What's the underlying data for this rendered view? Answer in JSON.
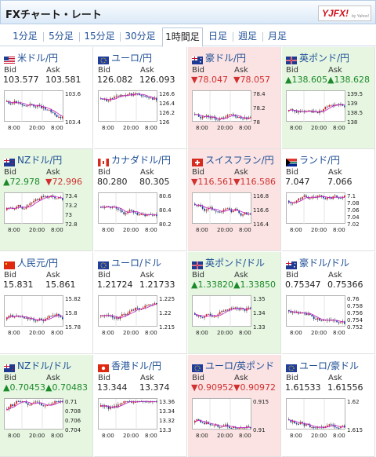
{
  "header": {
    "title": "FXチャート・レート",
    "logo_text": "YJFX!",
    "logo_sub": "by Yahoo!"
  },
  "tabs": [
    "1分足",
    "5分足",
    "15分足",
    "30分足",
    "1時間足",
    "日足",
    "週足",
    "月足"
  ],
  "active_tab": 4,
  "labels": {
    "bid": "Bid",
    "ask": "Ask"
  },
  "colors": {
    "up_bg": "#e6f6e1",
    "down_bg": "#fbe3e3",
    "up_text": "#1c8a2a",
    "down_text": "#d23030",
    "link": "#1e4f96"
  },
  "quotes": [
    {
      "name": "米ドル/円",
      "flag": "us-flag",
      "trend": "neutral",
      "bid": "103.577",
      "ask": "103.581",
      "yticks": [
        "103.6",
        "103.4"
      ],
      "xticks": [
        "8:00",
        "20:00",
        "8:00"
      ]
    },
    {
      "name": "ユーロ/円",
      "flag": "eu-flag",
      "trend": "neutral",
      "bid": "126.082",
      "ask": "126.093",
      "yticks": [
        "126.6",
        "126.4",
        "126.2",
        "126"
      ],
      "xticks": [
        "8:00",
        "20:00",
        "8:00"
      ]
    },
    {
      "name": "豪ドル/円",
      "flag": "au-flag",
      "trend": "down",
      "bid": "▼78.047",
      "ask": "▼78.057",
      "yticks": [
        "78.4",
        "78.2",
        "78"
      ],
      "xticks": [
        "8:00",
        "20:00",
        "8:00"
      ]
    },
    {
      "name": "英ポンド/円",
      "flag": "gb-flag",
      "trend": "up",
      "bid": "▲138.605",
      "ask": "▲138.628",
      "yticks": [
        "139.5",
        "139",
        "138.5",
        "138"
      ],
      "xticks": [
        "8:00",
        "20:00",
        "8:00"
      ]
    },
    {
      "name": "NZドル/円",
      "flag": "nz-flag",
      "trend": "up",
      "bid": "▲72.978",
      "ask": "▼72.996",
      "yticks": [
        "73.4",
        "73.2",
        "73",
        "72.8"
      ],
      "xticks": [
        "8:00",
        "20:00",
        "8:00"
      ]
    },
    {
      "name": "カナダドル/円",
      "flag": "ca-flag",
      "trend": "neutral",
      "bid": "80.280",
      "ask": "80.305",
      "yticks": [
        "80.6",
        "80.4",
        "80.2"
      ],
      "xticks": [
        "8:00",
        "20:00",
        "8:00"
      ]
    },
    {
      "name": "スイスフラン/円",
      "flag": "ch-flag",
      "trend": "down",
      "bid": "▼116.561",
      "ask": "▼116.586",
      "yticks": [
        "116.8",
        "116.6",
        "116.4"
      ],
      "xticks": [
        "8:00",
        "20:00",
        "8:00"
      ]
    },
    {
      "name": "ランド/円",
      "flag": "za-flag",
      "trend": "neutral",
      "bid": "7.047",
      "ask": "7.066",
      "yticks": [
        "7.1",
        "7.08",
        "7.06",
        "7.04",
        "7.02"
      ],
      "xticks": [
        "8:00",
        "20:00",
        "8:00"
      ]
    },
    {
      "name": "人民元/円",
      "flag": "cn-flag",
      "trend": "neutral",
      "bid": "15.831",
      "ask": "15.861",
      "yticks": [
        "15.82",
        "15.8",
        "15.78"
      ],
      "xticks": [
        "8:00",
        "20:00",
        "8:00"
      ]
    },
    {
      "name": "ユーロ/ドル",
      "flag": "eu-flag",
      "trend": "neutral",
      "bid": "1.21724",
      "ask": "1.21733",
      "yticks": [
        "1.225",
        "1.22",
        "1.215"
      ],
      "xticks": [
        "8:00",
        "20:00",
        "8:00"
      ]
    },
    {
      "name": "英ポンド/ドル",
      "flag": "gb-flag",
      "trend": "up",
      "bid": "▲1.33820",
      "ask": "▲1.33850",
      "yticks": [
        "1.35",
        "1.34",
        "1.33"
      ],
      "xticks": [
        "8:00",
        "20:00",
        "8:00"
      ]
    },
    {
      "name": "豪ドル/ドル",
      "flag": "au-flag",
      "trend": "neutral",
      "bid": "0.75347",
      "ask": "0.75366",
      "yticks": [
        "0.76",
        "0.758",
        "0.756",
        "0.754",
        "0.752"
      ],
      "xticks": [
        "8:00",
        "20:00",
        "8:00"
      ]
    },
    {
      "name": "NZドル/ドル",
      "flag": "nz-flag",
      "trend": "up",
      "bid": "▲0.70453",
      "ask": "▲0.70483",
      "yticks": [
        "0.71",
        "0.708",
        "0.706",
        "0.704"
      ],
      "xticks": [
        "8:00",
        "20:00",
        "8:00"
      ]
    },
    {
      "name": "香港ドル/円",
      "flag": "hk-flag",
      "trend": "neutral",
      "bid": "13.344",
      "ask": "13.374",
      "yticks": [
        "13.36",
        "13.34",
        "13.32",
        "13.3"
      ],
      "xticks": [
        "8:00",
        "20:00",
        "8:00"
      ]
    },
    {
      "name": "ユーロ/英ポンド",
      "flag": "eu-flag",
      "trend": "down",
      "bid": "▼0.90952",
      "ask": "▼0.90972",
      "yticks": [
        "0.915",
        "0.91"
      ],
      "xticks": [
        "8:00",
        "20:00",
        "8:00"
      ]
    },
    {
      "name": "ユーロ/豪ドル",
      "flag": "eu-flag",
      "trend": "neutral",
      "bid": "1.61533",
      "ask": "1.61556",
      "yticks": [
        "1.62",
        "1.615"
      ],
      "xticks": [
        "8:00",
        "20:00",
        "8:00"
      ]
    }
  ]
}
